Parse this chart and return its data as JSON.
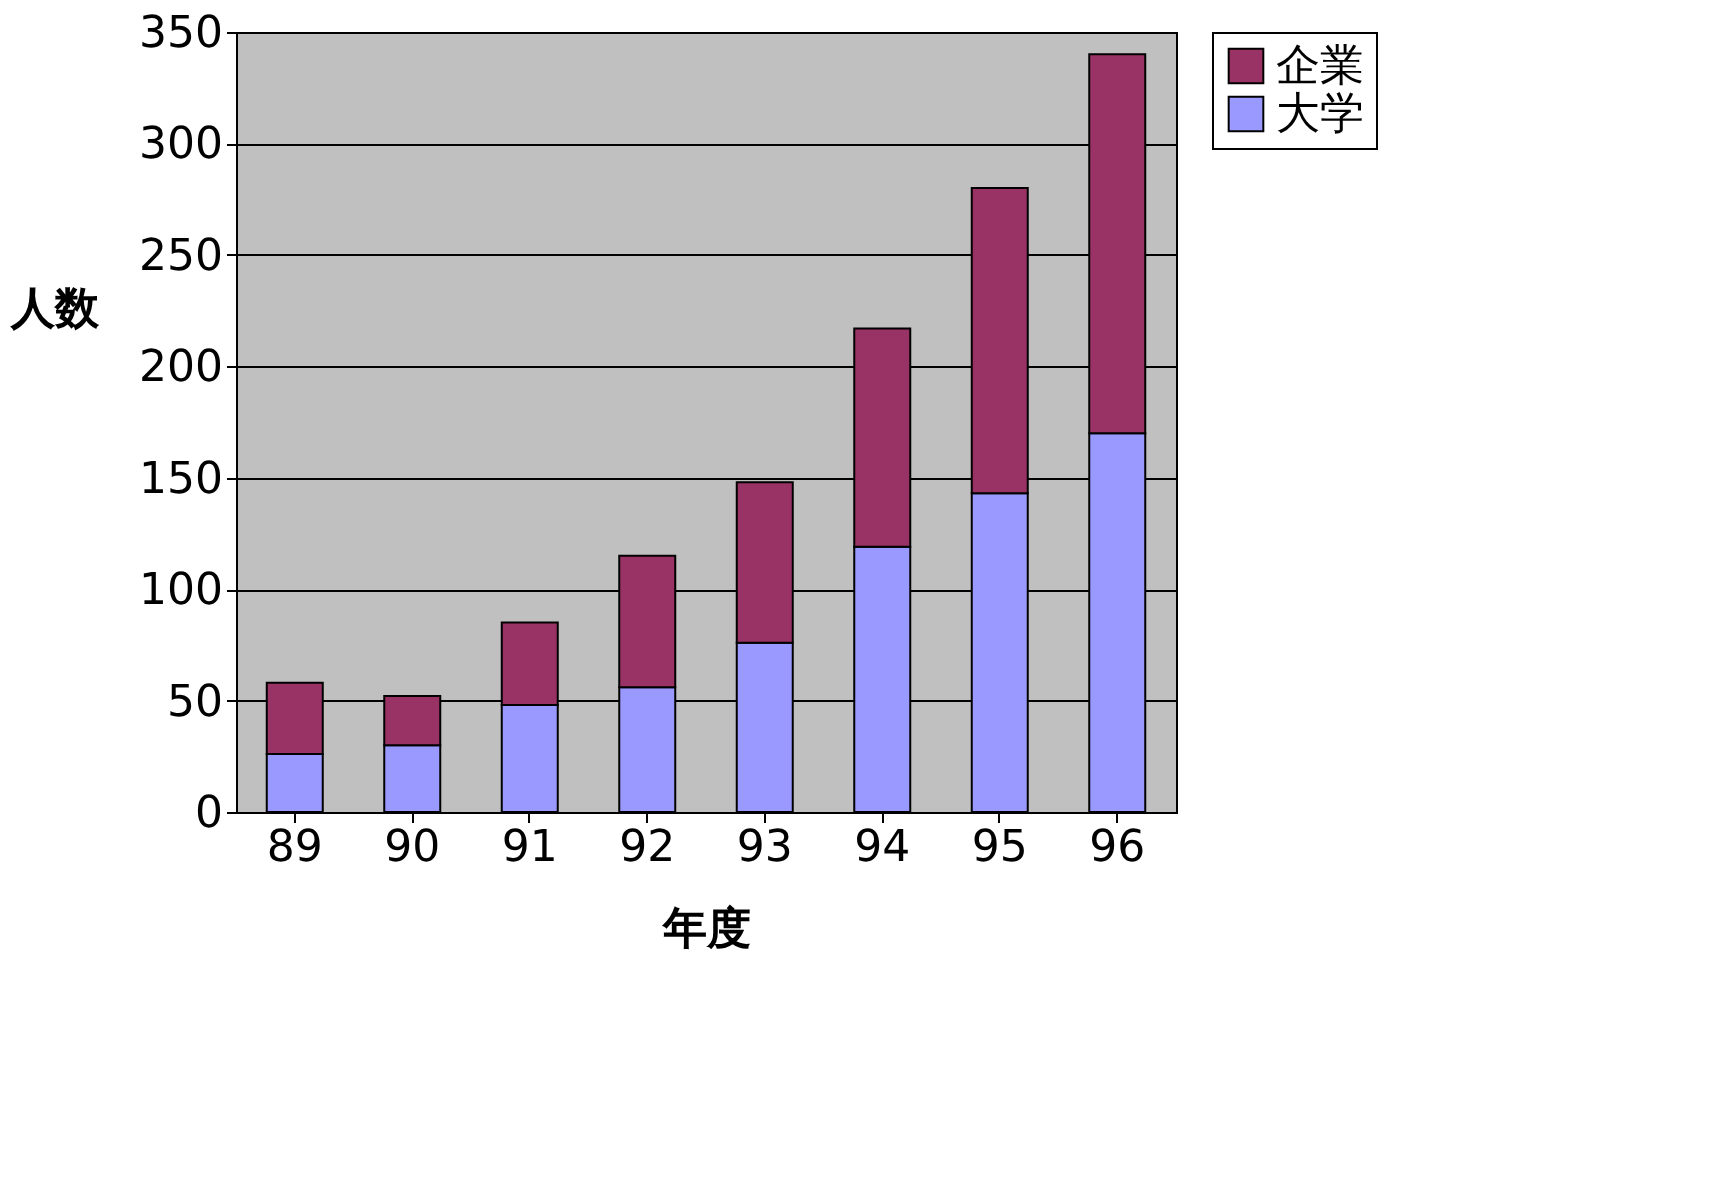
{
  "chart_data": {
    "type": "bar",
    "stacked": true,
    "xlabel": "年度",
    "ylabel": "人数",
    "categories": [
      "89",
      "90",
      "91",
      "92",
      "93",
      "94",
      "95",
      "96"
    ],
    "series": [
      {
        "name": "大学",
        "color": "#9999ff",
        "values": [
          26,
          30,
          48,
          56,
          76,
          119,
          143,
          170
        ]
      },
      {
        "name": "企業",
        "color": "#993366",
        "values": [
          32,
          22,
          37,
          59,
          72,
          98,
          137,
          170
        ]
      }
    ],
    "ylim": [
      0,
      350
    ],
    "yticks": [
      0,
      50,
      100,
      150,
      200,
      250,
      300,
      350
    ],
    "grid": "y",
    "legend": "right"
  }
}
